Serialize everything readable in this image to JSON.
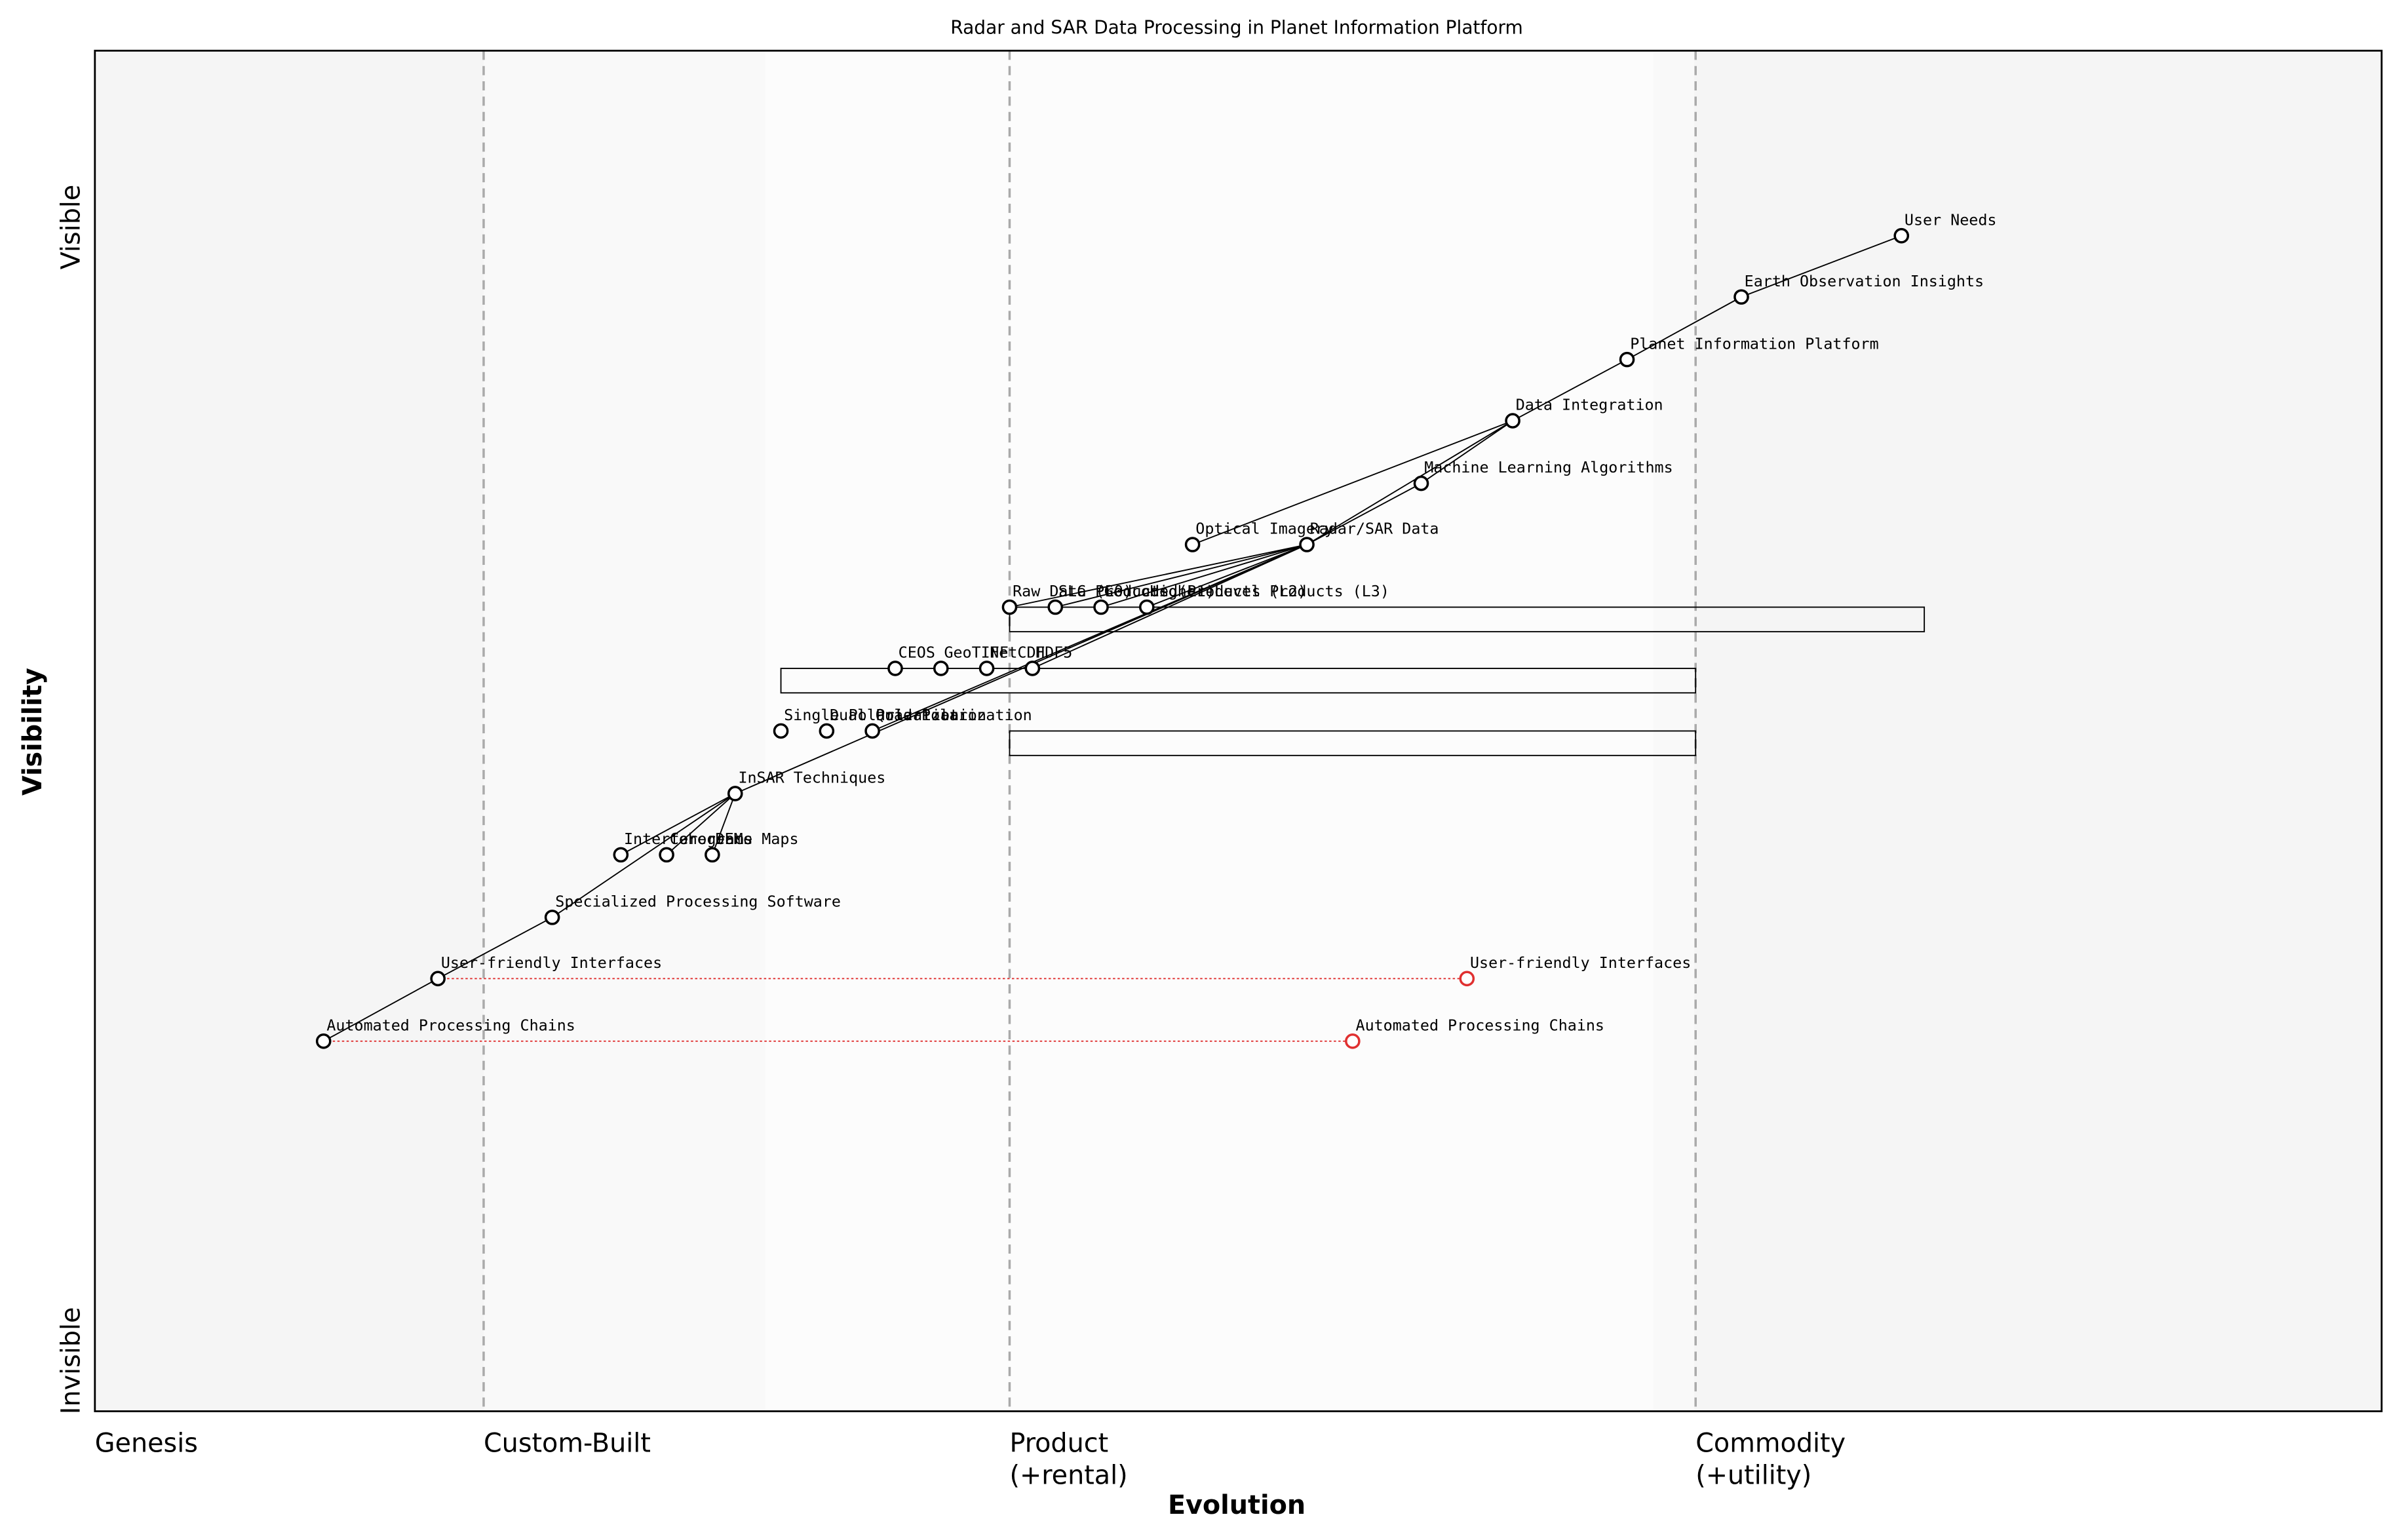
{
  "chart_data": {
    "type": "wardley",
    "title": "Radar and SAR Data Processing in Planet Information Platform",
    "x_label": "Evolution",
    "y_label": "Visibility",
    "y_top_label": "Visible",
    "y_bottom_label": "Invisible",
    "stages": [
      {
        "x": 0,
        "lines": [
          "Genesis"
        ]
      },
      {
        "x": 0.17,
        "lines": [
          "Custom-Built"
        ]
      },
      {
        "x": 0.4,
        "lines": [
          "Product",
          "(+rental)"
        ]
      },
      {
        "x": 0.7,
        "lines": [
          "Commodity",
          "(+utility)"
        ]
      }
    ],
    "xlim": [
      0,
      1
    ],
    "ylim": [
      0,
      1
    ],
    "components": [
      {
        "name": "User Needs",
        "evolution": 0.79,
        "visibility": 0.864
      },
      {
        "name": "Earth Observation Insights",
        "evolution": 0.72,
        "visibility": 0.819
      },
      {
        "name": "Planet Information Platform",
        "evolution": 0.67,
        "visibility": 0.773
      },
      {
        "name": "Data Integration",
        "evolution": 0.62,
        "visibility": 0.728
      },
      {
        "name": "Machine Learning Algorithms",
        "evolution": 0.58,
        "visibility": 0.682
      },
      {
        "name": "Optical Imagery",
        "evolution": 0.48,
        "visibility": 0.637
      },
      {
        "name": "Radar/SAR Data",
        "evolution": 0.53,
        "visibility": 0.637
      },
      {
        "name": "Raw Data (L0)",
        "evolution": 0.4,
        "visibility": 0.591
      },
      {
        "name": "SLC Products (L1)",
        "evolution": 0.42,
        "visibility": 0.591
      },
      {
        "name": "Geocoded Products (L2)",
        "evolution": 0.44,
        "visibility": 0.591
      },
      {
        "name": "Higher-Level Products (L3)",
        "evolution": 0.46,
        "visibility": 0.591
      },
      {
        "name": "CEOS",
        "evolution": 0.35,
        "visibility": 0.546
      },
      {
        "name": "GeoTIFF",
        "evolution": 0.37,
        "visibility": 0.546
      },
      {
        "name": "NetCDF",
        "evolution": 0.39,
        "visibility": 0.546
      },
      {
        "name": "HDF5",
        "evolution": 0.41,
        "visibility": 0.546
      },
      {
        "name": "Single Polarization",
        "evolution": 0.3,
        "visibility": 0.5
      },
      {
        "name": "Dual Polarization",
        "evolution": 0.32,
        "visibility": 0.5
      },
      {
        "name": "Quad Polarization",
        "evolution": 0.34,
        "visibility": 0.5
      },
      {
        "name": "InSAR Techniques",
        "evolution": 0.28,
        "visibility": 0.454
      },
      {
        "name": "Interferograms",
        "evolution": 0.23,
        "visibility": 0.409
      },
      {
        "name": "Coherence Maps",
        "evolution": 0.25,
        "visibility": 0.409
      },
      {
        "name": "DEMs",
        "evolution": 0.27,
        "visibility": 0.409
      },
      {
        "name": "Specialized Processing Software",
        "evolution": 0.2,
        "visibility": 0.363
      },
      {
        "name": "User-friendly Interfaces",
        "evolution": 0.15,
        "visibility": 0.318,
        "evolve": 0.6
      },
      {
        "name": "Automated Processing Chains",
        "evolution": 0.1,
        "visibility": 0.272,
        "evolve": 0.55
      }
    ],
    "links": [
      [
        0,
        1
      ],
      [
        1,
        2
      ],
      [
        2,
        3
      ],
      [
        3,
        4
      ],
      [
        4,
        6
      ],
      [
        3,
        5
      ],
      [
        3,
        6
      ],
      [
        6,
        7
      ],
      [
        6,
        8
      ],
      [
        6,
        9
      ],
      [
        6,
        10
      ],
      [
        6,
        14
      ],
      [
        6,
        17
      ],
      [
        6,
        18
      ],
      [
        18,
        19
      ],
      [
        18,
        20
      ],
      [
        18,
        21
      ],
      [
        22,
        18
      ],
      [
        23,
        22
      ],
      [
        24,
        23
      ]
    ],
    "pipelines": [
      {
        "visibility": 0.591,
        "x_start": 0.4,
        "x_end": 0.8
      },
      {
        "visibility": 0.546,
        "x_start": 0.3,
        "x_end": 0.7
      },
      {
        "visibility": 0.5,
        "x_start": 0.4,
        "x_end": 0.7
      }
    ]
  }
}
